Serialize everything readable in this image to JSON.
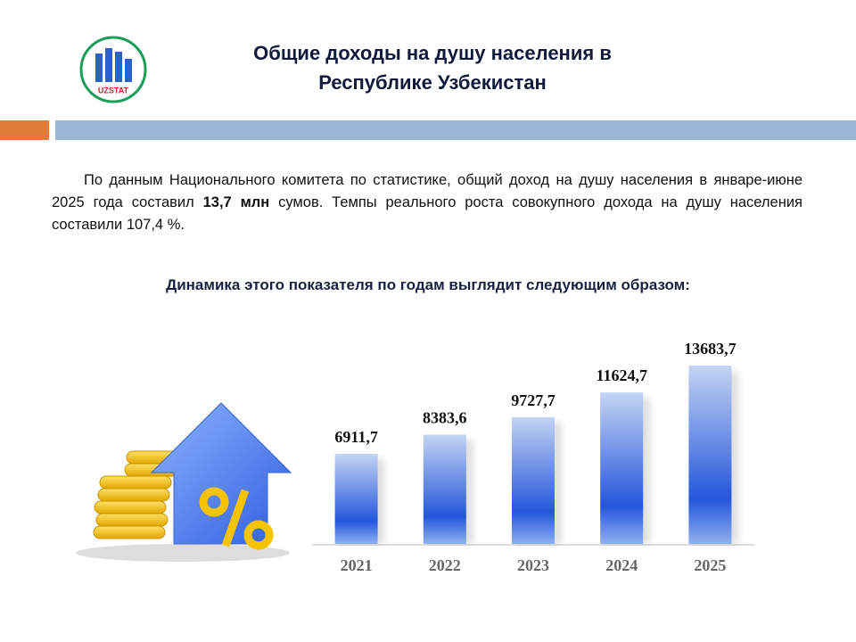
{
  "logo_text": "UZSTAT",
  "header": {
    "title_line1": "Общие доходы на душу населения в",
    "title_line2": "Республике Узбекистан"
  },
  "paragraph": {
    "part1": "По данным Национального комитета по статистике, общий доход на душу населения в январе-июне 2025 года составил ",
    "bold": "13,7 млн",
    "part2": " сумов. Темпы реального роста совокупного дохода на душу населения  составили  107,4 %."
  },
  "subtitle": "Динамика этого показателя по годам выглядит  следующим  образом:",
  "chart_data": {
    "type": "bar",
    "categories": [
      "2021",
      "2022",
      "2023",
      "2024",
      "2025"
    ],
    "values": [
      6911.7,
      8383.6,
      9727.7,
      11624.7,
      13683.7
    ],
    "value_labels": [
      "6911,7",
      "8383,6",
      "9727,7",
      "11624,7",
      "13683,7"
    ],
    "color": "#2456dc"
  }
}
